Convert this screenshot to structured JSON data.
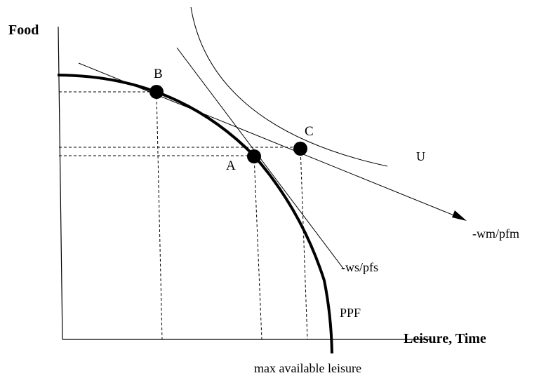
{
  "axes": {
    "y_label": "Food",
    "x_label": "Leisure, Time"
  },
  "points": {
    "a": "A",
    "b": "B",
    "c": "C"
  },
  "curves": {
    "indifference": "U",
    "market_price_line": "-wm/pfm",
    "shadow_price_line": "-ws/pfs",
    "frontier": "PPF"
  },
  "annotations": {
    "max_leisure": "max available leisure"
  },
  "colors": {
    "ink": "#000000",
    "background": "#ffffff"
  }
}
